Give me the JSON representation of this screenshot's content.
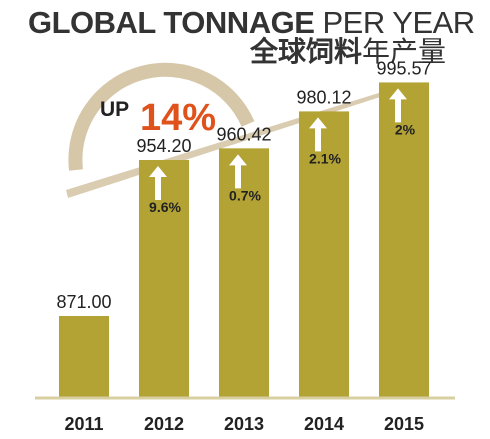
{
  "title": {
    "en_bold": "GLOBAL TONNAGE",
    "en_light": " PER YEAR",
    "cn_bold": "全球饲料",
    "cn_light": "年产量"
  },
  "growth_callout": {
    "prefix": "UP",
    "value": "14%"
  },
  "colors": {
    "bar": "#b3a234",
    "arrow": "#d9ccb0",
    "callout_arc": "#d6c7a8",
    "callout_value": "#e0521b",
    "text": "#222222",
    "baseline": "#d8cfa0"
  },
  "chart_data": {
    "type": "bar",
    "categories": [
      "2011",
      "2012",
      "2013",
      "2014",
      "2015"
    ],
    "values": [
      871.0,
      954.2,
      960.42,
      980.12,
      995.57
    ],
    "value_labels": [
      "871.00",
      "954.20",
      "960.42",
      "980.12",
      "995.57"
    ],
    "growth_labels": [
      "",
      "9.6%",
      "0.7%",
      "2.1%",
      "2%"
    ],
    "title": "GLOBAL TONNAGE PER YEAR 全球饲料年产量",
    "xlabel": "",
    "ylabel": "",
    "grid": false,
    "legend": "none"
  }
}
